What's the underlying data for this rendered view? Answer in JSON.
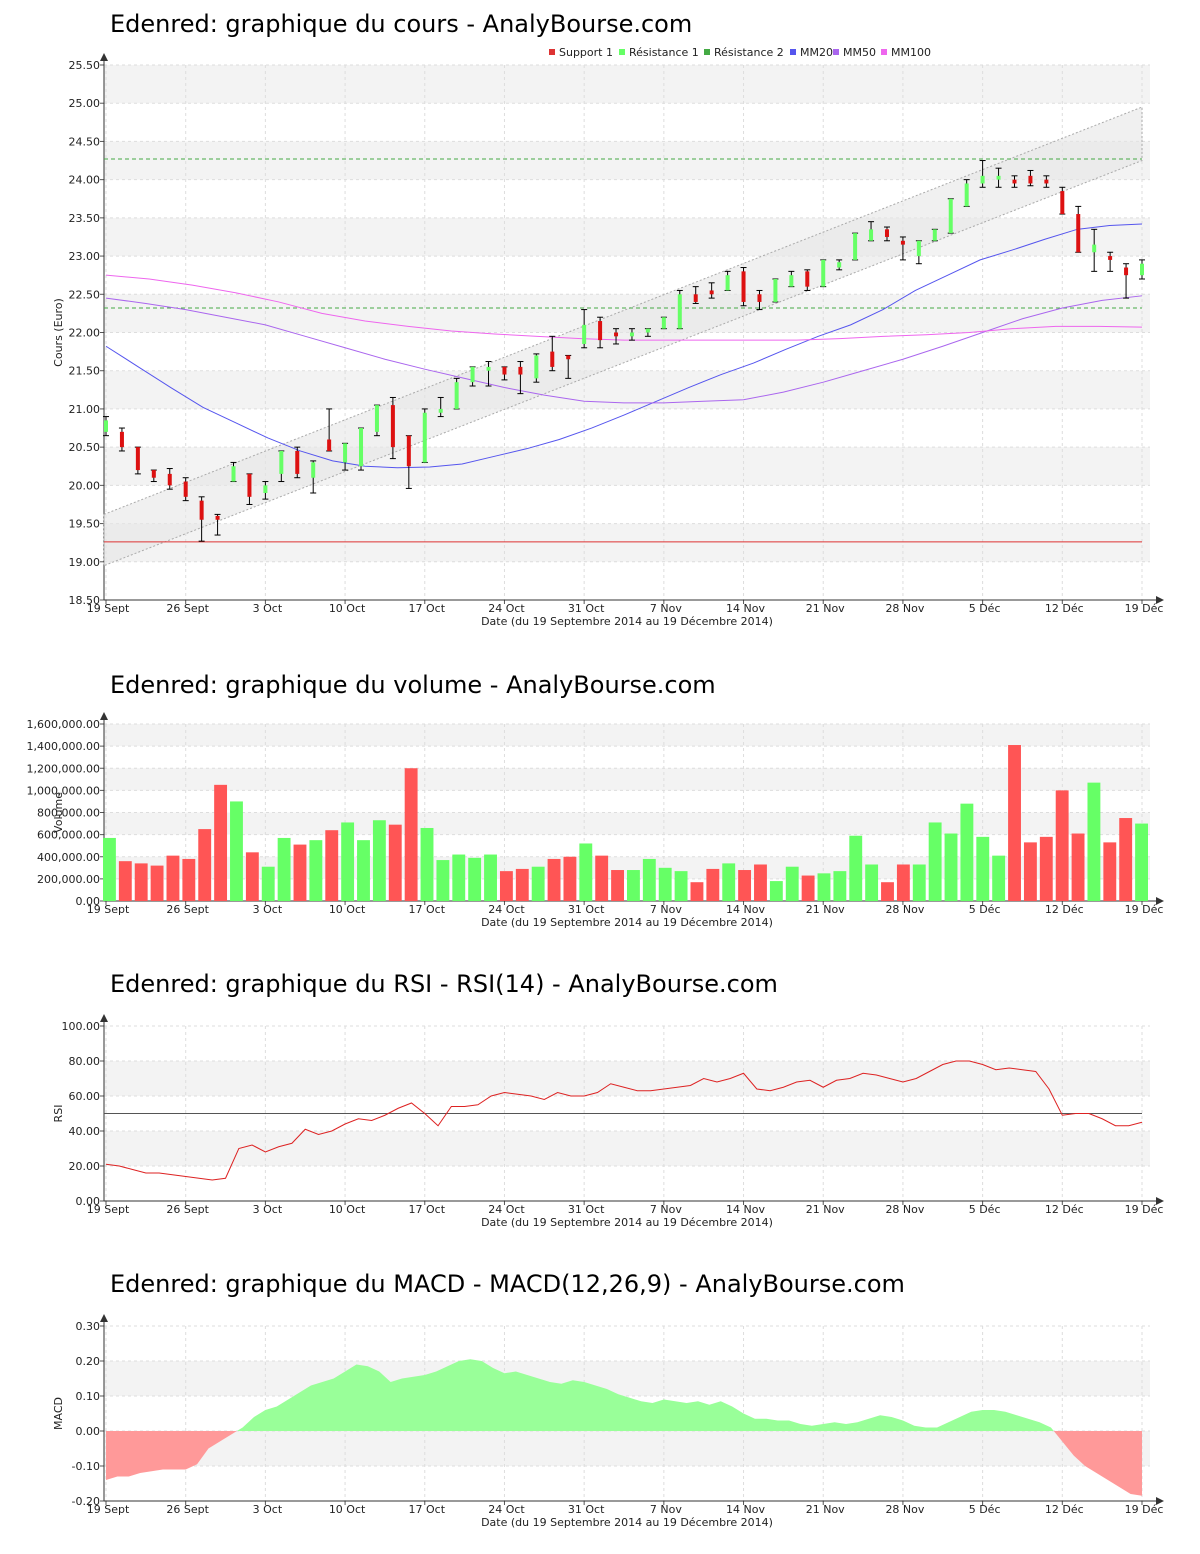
{
  "x_ticks": [
    "19 Sept",
    "26 Sept",
    "3 Oct",
    "10 Oct",
    "17 Oct",
    "24 Oct",
    "31 Oct",
    "7 Nov",
    "14 Nov",
    "21 Nov",
    "28 Nov",
    "5 Déc",
    "12 Déc",
    "19 Déc"
  ],
  "xlabel": "Date (du 19 Septembre 2014 au 19 Décembre 2014)",
  "colors": {
    "up": "#66ff66",
    "down": "#ff5555",
    "mm20": "#5555ee",
    "mm50": "#aa66ee",
    "mm100": "#ee66ee",
    "support": "#dd3333",
    "resist": "#44aa44"
  },
  "chart_data": [
    {
      "id": "price",
      "type": "candlestick",
      "title": "Edenred: graphique du cours - AnalyBourse.com",
      "ylabel": "Cours (Euro)",
      "ylim": [
        18.5,
        25.5
      ],
      "yticks": [
        "18.50",
        "19.00",
        "19.50",
        "20.00",
        "20.50",
        "21.00",
        "21.50",
        "22.00",
        "22.50",
        "23.00",
        "23.50",
        "24.00",
        "24.50",
        "25.00",
        "25.50"
      ],
      "legend": [
        "Support 1",
        "Résistance 1",
        "Résistance 2",
        "MM20",
        "MM50",
        "MM100"
      ],
      "support_1": 19.26,
      "resistance_1": 22.32,
      "resistance_2": 24.27,
      "ohlc": [
        [
          20.7,
          20.9,
          20.65,
          20.85
        ],
        [
          20.7,
          20.75,
          20.45,
          20.5
        ],
        [
          20.5,
          20.5,
          20.15,
          20.2
        ],
        [
          20.2,
          20.2,
          20.05,
          20.1
        ],
        [
          20.15,
          20.22,
          19.95,
          20.0
        ],
        [
          20.05,
          20.1,
          19.8,
          19.85
        ],
        [
          19.8,
          19.85,
          19.27,
          19.55
        ],
        [
          19.6,
          19.62,
          19.35,
          19.55
        ],
        [
          20.05,
          20.3,
          20.05,
          20.25
        ],
        [
          20.15,
          20.15,
          19.75,
          19.85
        ],
        [
          19.9,
          20.05,
          19.82,
          20.0
        ],
        [
          20.15,
          20.45,
          20.05,
          20.45
        ],
        [
          20.45,
          20.5,
          20.1,
          20.15
        ],
        [
          20.1,
          20.32,
          19.9,
          20.3
        ],
        [
          20.6,
          21.0,
          20.45,
          20.45
        ],
        [
          20.3,
          20.55,
          20.2,
          20.55
        ],
        [
          20.25,
          20.75,
          20.2,
          20.75
        ],
        [
          20.7,
          21.05,
          20.65,
          21.05
        ],
        [
          21.05,
          21.15,
          20.35,
          20.5
        ],
        [
          20.65,
          20.65,
          19.96,
          20.25
        ],
        [
          20.3,
          21.0,
          20.3,
          20.95
        ],
        [
          20.95,
          21.15,
          20.9,
          21.0
        ],
        [
          21.0,
          21.4,
          21.0,
          21.35
        ],
        [
          21.35,
          21.55,
          21.3,
          21.55
        ],
        [
          21.5,
          21.62,
          21.3,
          21.55
        ],
        [
          21.55,
          21.55,
          21.38,
          21.45
        ],
        [
          21.55,
          21.62,
          21.2,
          21.45
        ],
        [
          21.4,
          21.72,
          21.35,
          21.7
        ],
        [
          21.75,
          21.95,
          21.5,
          21.55
        ],
        [
          21.7,
          21.7,
          21.4,
          21.65
        ],
        [
          21.85,
          22.3,
          21.8,
          22.1
        ],
        [
          22.15,
          22.2,
          21.8,
          21.9
        ],
        [
          22.0,
          22.05,
          21.85,
          21.95
        ],
        [
          21.95,
          22.05,
          21.9,
          22.0
        ],
        [
          22.0,
          22.05,
          21.95,
          22.05
        ],
        [
          22.05,
          22.2,
          22.05,
          22.2
        ],
        [
          22.05,
          22.55,
          22.05,
          22.5
        ],
        [
          22.5,
          22.6,
          22.38,
          22.4
        ],
        [
          22.55,
          22.65,
          22.45,
          22.5
        ],
        [
          22.55,
          22.8,
          22.55,
          22.75
        ],
        [
          22.8,
          22.85,
          22.35,
          22.4
        ],
        [
          22.5,
          22.55,
          22.3,
          22.4
        ],
        [
          22.4,
          22.7,
          22.4,
          22.7
        ],
        [
          22.6,
          22.8,
          22.6,
          22.75
        ],
        [
          22.8,
          22.82,
          22.55,
          22.6
        ],
        [
          22.6,
          22.95,
          22.6,
          22.95
        ],
        [
          22.85,
          22.95,
          22.82,
          22.92
        ],
        [
          22.95,
          23.3,
          22.95,
          23.3
        ],
        [
          23.2,
          23.45,
          23.2,
          23.35
        ],
        [
          23.35,
          23.38,
          23.2,
          23.25
        ],
        [
          23.2,
          23.25,
          22.95,
          23.15
        ],
        [
          23.0,
          23.2,
          22.9,
          23.2
        ],
        [
          23.2,
          23.35,
          23.2,
          23.35
        ],
        [
          23.3,
          23.75,
          23.3,
          23.75
        ],
        [
          23.65,
          24.0,
          23.65,
          23.95
        ],
        [
          23.95,
          24.25,
          23.9,
          24.05
        ],
        [
          24.0,
          24.15,
          23.9,
          24.05
        ],
        [
          24.0,
          24.05,
          23.9,
          23.95
        ],
        [
          24.05,
          24.12,
          23.92,
          23.95
        ],
        [
          24.0,
          24.05,
          23.9,
          23.95
        ],
        [
          23.85,
          23.9,
          23.55,
          23.55
        ],
        [
          23.55,
          23.65,
          23.05,
          23.05
        ],
        [
          23.05,
          23.35,
          22.8,
          23.15
        ],
        [
          23.0,
          23.05,
          22.8,
          22.95
        ],
        [
          22.85,
          22.9,
          22.45,
          22.75
        ],
        [
          22.75,
          22.95,
          22.7,
          22.9
        ]
      ],
      "mm20": [
        21.82,
        21.55,
        21.28,
        21.02,
        20.82,
        20.62,
        20.45,
        20.32,
        20.25,
        20.23,
        20.24,
        20.28,
        20.38,
        20.48,
        20.6,
        20.75,
        20.92,
        21.1,
        21.28,
        21.45,
        21.6,
        21.78,
        21.95,
        22.1,
        22.3,
        22.55,
        22.75,
        22.95,
        23.08,
        23.22,
        23.35,
        23.4,
        23.42
      ],
      "mm50": [
        22.45,
        22.38,
        22.3,
        22.2,
        22.1,
        21.95,
        21.8,
        21.65,
        21.52,
        21.4,
        21.28,
        21.18,
        21.1,
        21.08,
        21.08,
        21.1,
        21.12,
        21.22,
        21.35,
        21.5,
        21.65,
        21.82,
        22.0,
        22.18,
        22.32,
        22.42,
        22.48
      ],
      "mm100": [
        22.75,
        22.7,
        22.62,
        22.52,
        22.4,
        22.25,
        22.15,
        22.08,
        22.02,
        21.98,
        21.95,
        21.92,
        21.9,
        21.9,
        21.9,
        21.9,
        21.9,
        21.92,
        21.95,
        21.97,
        22.0,
        22.05,
        22.08,
        22.08,
        22.07
      ]
    },
    {
      "id": "volume",
      "type": "bar",
      "title": "Edenred: graphique du volume - AnalyBourse.com",
      "ylabel": "Volume",
      "ylim": [
        0,
        1600000
      ],
      "yticks": [
        "0.00",
        "200,000.00",
        "400,000.00",
        "600,000.00",
        "800,000.00",
        "1,000,000.00",
        "1,200,000.00",
        "1,400,000.00",
        "1,600,000.00"
      ],
      "values": [
        570000,
        360000,
        340000,
        320000,
        410000,
        380000,
        650000,
        1050000,
        900000,
        440000,
        310000,
        570000,
        510000,
        550000,
        640000,
        710000,
        550000,
        730000,
        690000,
        1200000,
        660000,
        370000,
        420000,
        390000,
        420000,
        270000,
        290000,
        310000,
        380000,
        400000,
        520000,
        410000,
        280000,
        280000,
        380000,
        300000,
        270000,
        170000,
        290000,
        340000,
        280000,
        330000,
        180000,
        310000,
        230000,
        250000,
        270000,
        590000,
        330000,
        170000,
        330000,
        330000,
        710000,
        610000,
        880000,
        580000,
        410000,
        1410000,
        530000,
        580000,
        1000000,
        610000,
        1070000,
        530000,
        750000,
        700000
      ]
    },
    {
      "id": "rsi",
      "type": "line",
      "title": "Edenred: graphique du RSI - RSI(14) - AnalyBourse.com",
      "ylabel": "RSI",
      "ylim": [
        0,
        100
      ],
      "yticks": [
        "0.00",
        "20.00",
        "40.00",
        "60.00",
        "80.00",
        "100.00"
      ],
      "reference": 50,
      "values": [
        21,
        20,
        18,
        16,
        16,
        15,
        14,
        13,
        12,
        13,
        30,
        32,
        28,
        31,
        33,
        41,
        38,
        40,
        44,
        47,
        46,
        49,
        53,
        56,
        50,
        43,
        54,
        54,
        55,
        60,
        62,
        61,
        60,
        58,
        62,
        60,
        60,
        62,
        67,
        65,
        63,
        63,
        64,
        65,
        66,
        70,
        68,
        70,
        73,
        64,
        63,
        65,
        68,
        69,
        65,
        69,
        70,
        73,
        72,
        70,
        68,
        70,
        74,
        78,
        80,
        80,
        78,
        75,
        76,
        75,
        74,
        64,
        49,
        50,
        50,
        47,
        43,
        43,
        45
      ]
    },
    {
      "id": "macd",
      "type": "area",
      "title": "Edenred: graphique du MACD - MACD(12,26,9) - AnalyBourse.com",
      "ylabel": "MACD",
      "ylim": [
        -0.2,
        0.3
      ],
      "yticks": [
        "-0.20",
        "-0.10",
        "0.00",
        "0.10",
        "0.20",
        "0.30"
      ],
      "values": [
        -0.14,
        -0.13,
        -0.13,
        -0.12,
        -0.115,
        -0.11,
        -0.11,
        -0.11,
        -0.095,
        -0.05,
        -0.03,
        -0.01,
        0.01,
        0.04,
        0.06,
        0.07,
        0.09,
        0.11,
        0.13,
        0.14,
        0.15,
        0.17,
        0.19,
        0.185,
        0.17,
        0.14,
        0.15,
        0.155,
        0.16,
        0.17,
        0.185,
        0.2,
        0.205,
        0.2,
        0.18,
        0.165,
        0.17,
        0.16,
        0.15,
        0.14,
        0.135,
        0.145,
        0.14,
        0.13,
        0.12,
        0.105,
        0.095,
        0.085,
        0.08,
        0.09,
        0.085,
        0.08,
        0.085,
        0.075,
        0.085,
        0.07,
        0.05,
        0.035,
        0.035,
        0.03,
        0.03,
        0.02,
        0.015,
        0.02,
        0.025,
        0.02,
        0.025,
        0.035,
        0.045,
        0.04,
        0.03,
        0.015,
        0.01,
        0.01,
        0.025,
        0.04,
        0.055,
        0.06,
        0.06,
        0.055,
        0.045,
        0.035,
        0.025,
        0.01,
        -0.03,
        -0.07,
        -0.1,
        -0.12,
        -0.14,
        -0.16,
        -0.18,
        -0.185
      ]
    }
  ]
}
